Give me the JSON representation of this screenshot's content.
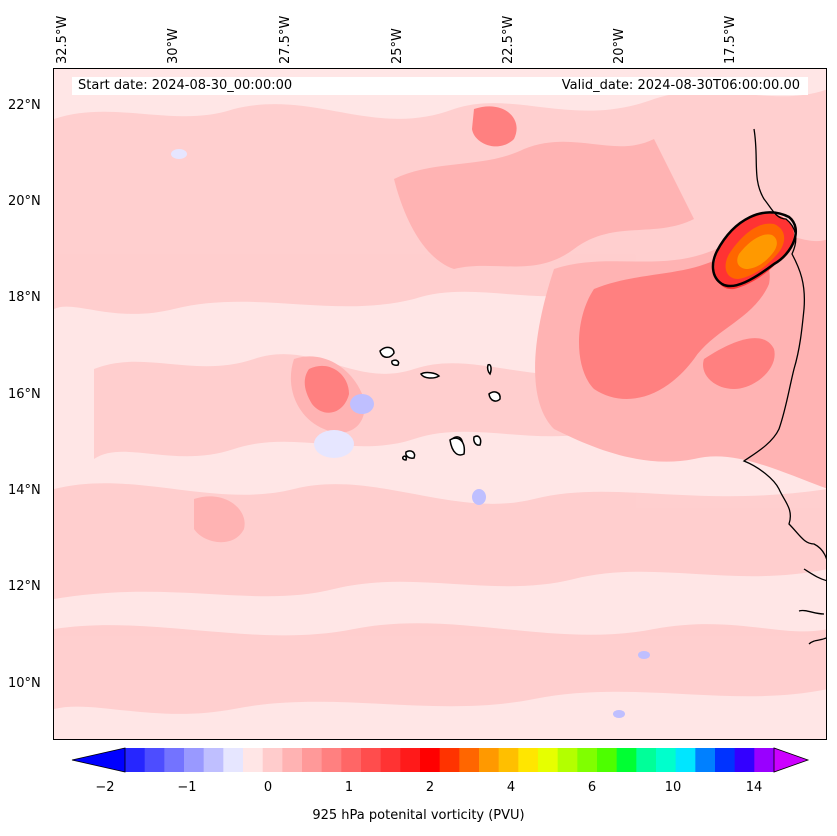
{
  "header": {
    "start_date": "Start date: 2024-08-30_00:00:00",
    "valid_date": "Valid_date: 2024-08-30T06:00:00.00"
  },
  "longitude_labels": [
    "32.5°W",
    "30°W",
    "27.5°W",
    "25°W",
    "22.5°W",
    "20°W",
    "17.5°W"
  ],
  "latitude_labels": [
    "22°N",
    "20°N",
    "18°N",
    "16°N",
    "14°N",
    "12°N",
    "10°N"
  ],
  "colorbar": {
    "label": "925 hPa potenital vorticity (PVU)",
    "tick_labels": [
      "−2",
      "−1",
      "0",
      "1",
      "2",
      "4",
      "6",
      "10",
      "14"
    ],
    "colors": [
      "#0000ff",
      "#2626ff",
      "#4d4dff",
      "#7373ff",
      "#9999ff",
      "#bfbfff",
      "#e6e6ff",
      "#ffe6e6",
      "#ffcccc",
      "#ffb3b3",
      "#ff9999",
      "#ff8080",
      "#ff6666",
      "#ff4d4d",
      "#ff3333",
      "#ff1a1a",
      "#ff0000",
      "#ff3300",
      "#ff6600",
      "#ff9900",
      "#ffbf00",
      "#ffe600",
      "#e6ff00",
      "#b3ff00",
      "#80ff00",
      "#4dff00",
      "#00ff33",
      "#00ff99",
      "#00ffcc",
      "#00e6ff",
      "#0080ff",
      "#0033ff",
      "#3300ff",
      "#9900ff",
      "#cc00ff"
    ]
  }
}
